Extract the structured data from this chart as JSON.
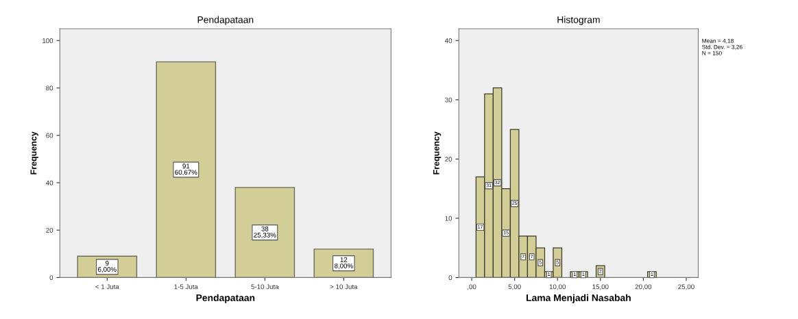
{
  "chart_data": [
    {
      "type": "bar",
      "title": "Pendapataan",
      "xlabel": "Pendapataan",
      "ylabel": "Frequency",
      "categories": [
        "< 1 Juta",
        "1-5 Juta",
        "5-10 Juta",
        "> 10 Juta"
      ],
      "values": [
        9,
        91,
        38,
        12
      ],
      "color": "#d3cd98",
      "value_labels": [
        "9\n6,00%",
        "91\n60,67%",
        "38\n25,33%",
        "12\n8,00%"
      ],
      "ylim": [
        0,
        105
      ],
      "yticks": [
        0,
        20,
        40,
        60,
        80,
        100
      ],
      "grid": false
    },
    {
      "type": "histogram",
      "title": "Histogram",
      "xlabel": "Lama Menjadi Nasabah",
      "ylabel": "Frequency",
      "bins": [
        0.5,
        1.5,
        2.5,
        3.5,
        4.5,
        5.5,
        6.5,
        7.5,
        8.5,
        9.5,
        10.5,
        11.5,
        12.5,
        13.5,
        14.5,
        15.5,
        16.5,
        17.5,
        18.5,
        19.5,
        20.5,
        21.5
      ],
      "values": [
        17,
        31,
        32,
        15,
        25,
        7,
        7,
        5,
        1,
        5,
        0,
        1,
        1,
        0,
        2,
        0,
        0,
        0,
        0,
        0,
        1
      ],
      "color": "#d3cd98",
      "value_labels": [
        "17",
        "31",
        "32",
        "15",
        "25",
        "7",
        "7",
        "5",
        "1",
        "5",
        null,
        "1",
        "1",
        null,
        "2",
        null,
        null,
        null,
        null,
        null,
        "1"
      ],
      "xlim": [
        -1.5,
        26.4
      ],
      "xticks": [
        {
          "value": 0,
          "label": ",00"
        },
        {
          "value": 5,
          "label": "5,00"
        },
        {
          "value": 10,
          "label": "10,00"
        },
        {
          "value": 15,
          "label": "15,00"
        },
        {
          "value": 20,
          "label": "20,00"
        },
        {
          "value": 25,
          "label": "25,00"
        }
      ],
      "ylim": [
        0,
        42
      ],
      "yticks": [
        0,
        10,
        20,
        30,
        40
      ],
      "grid": false,
      "annotations": [
        "Mean = 4,18\nStd. Dev. = 3,26\nN = 150"
      ]
    }
  ]
}
